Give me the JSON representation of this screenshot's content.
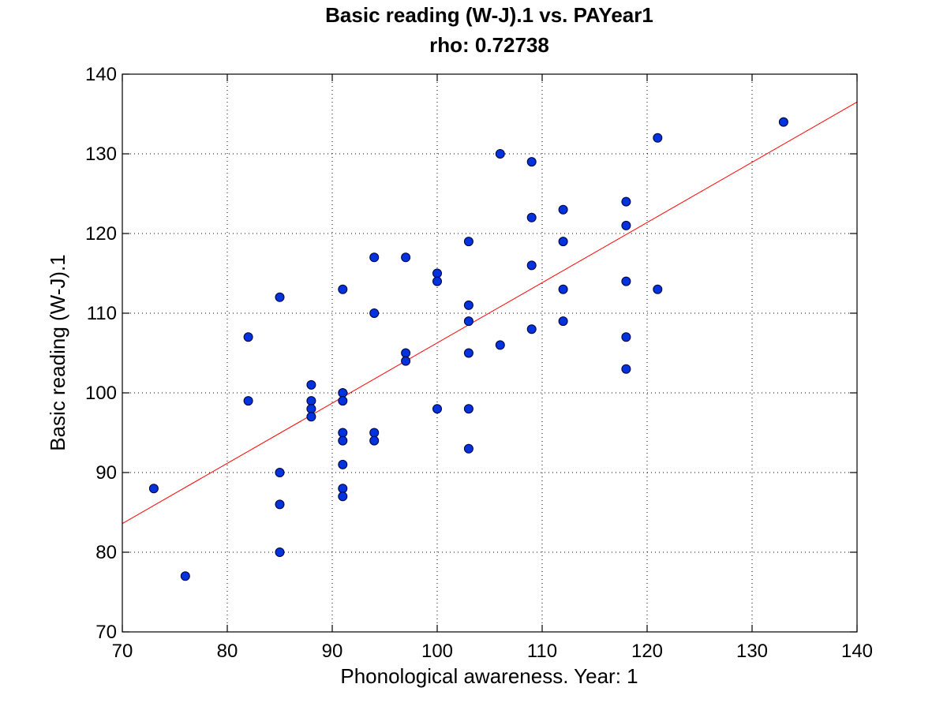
{
  "chart_data": {
    "type": "scatter",
    "title": "Basic reading (W-J).1 vs. PAYear1",
    "subtitle": "rho: 0.72738",
    "xlabel": "Phonological awareness. Year: 1",
    "ylabel": "Basic reading (W-J).1",
    "xlim": [
      70,
      140
    ],
    "ylim": [
      70,
      140
    ],
    "xticks": [
      70,
      80,
      90,
      100,
      110,
      120,
      130,
      140
    ],
    "yticks": [
      70,
      80,
      90,
      100,
      110,
      120,
      130,
      140
    ],
    "grid": true,
    "marker_color": "#0033dd",
    "fit_color": "#ff0000",
    "fit_line": {
      "x": [
        70,
        140
      ],
      "y": [
        83.6,
        136.5
      ]
    },
    "points": [
      [
        73,
        88
      ],
      [
        76,
        77
      ],
      [
        82,
        107
      ],
      [
        82,
        99
      ],
      [
        85,
        112
      ],
      [
        85,
        90
      ],
      [
        85,
        86
      ],
      [
        85,
        80
      ],
      [
        88,
        101
      ],
      [
        88,
        99
      ],
      [
        88,
        98
      ],
      [
        88,
        97
      ],
      [
        91,
        113
      ],
      [
        91,
        100
      ],
      [
        91,
        99
      ],
      [
        91,
        95
      ],
      [
        91,
        94
      ],
      [
        91,
        91
      ],
      [
        91,
        88
      ],
      [
        91,
        87
      ],
      [
        94,
        117
      ],
      [
        94,
        110
      ],
      [
        94,
        95
      ],
      [
        94,
        94
      ],
      [
        97,
        117
      ],
      [
        97,
        105
      ],
      [
        97,
        104
      ],
      [
        100,
        115
      ],
      [
        100,
        114
      ],
      [
        100,
        98
      ],
      [
        103,
        119
      ],
      [
        103,
        111
      ],
      [
        103,
        109
      ],
      [
        103,
        105
      ],
      [
        103,
        98
      ],
      [
        103,
        93
      ],
      [
        106,
        130
      ],
      [
        106,
        106
      ],
      [
        109,
        129
      ],
      [
        109,
        122
      ],
      [
        109,
        116
      ],
      [
        109,
        108
      ],
      [
        112,
        123
      ],
      [
        112,
        119
      ],
      [
        112,
        113
      ],
      [
        112,
        109
      ],
      [
        118,
        124
      ],
      [
        118,
        121
      ],
      [
        118,
        114
      ],
      [
        118,
        107
      ],
      [
        118,
        103
      ],
      [
        121,
        132
      ],
      [
        121,
        113
      ],
      [
        133,
        134
      ]
    ]
  }
}
